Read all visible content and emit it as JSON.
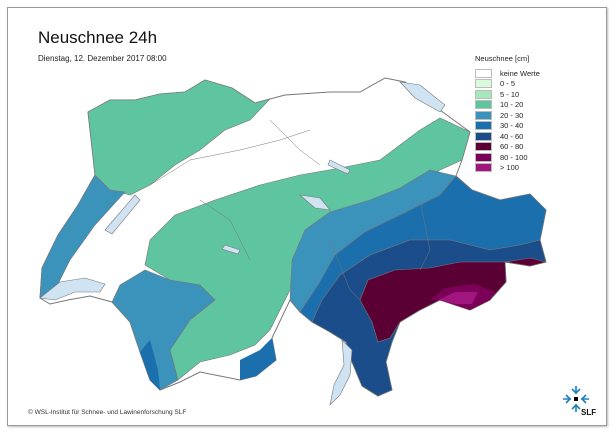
{
  "title": "Neuschnee 24h",
  "subtitle": "Dienstag, 12. Dezember 2017 08:00",
  "legend": {
    "title": "Neuschnee [cm]",
    "items": [
      {
        "label": "keine Werte",
        "color": "#ffffff"
      },
      {
        "label": "0 - 5",
        "color": "#d9fadb"
      },
      {
        "label": "5 - 10",
        "color": "#a6e8bc"
      },
      {
        "label": "10 - 20",
        "color": "#5fc4a0"
      },
      {
        "label": "20 - 30",
        "color": "#3b93bb"
      },
      {
        "label": "30 - 40",
        "color": "#1b6fad"
      },
      {
        "label": "40 - 60",
        "color": "#1b4d8a"
      },
      {
        "label": "60 - 80",
        "color": "#5b0035"
      },
      {
        "label": "80 - 100",
        "color": "#7a0058"
      },
      {
        "label": "> 100",
        "color": "#a0157e"
      }
    ]
  },
  "footer": "© WSL-Institut für Schnee- und Lawinenforschung SLF",
  "logo": {
    "text": "SLF",
    "icon": "snowflake-logo-icon"
  },
  "colors": {
    "lake": "#cfe3f3",
    "border": "#777777"
  }
}
